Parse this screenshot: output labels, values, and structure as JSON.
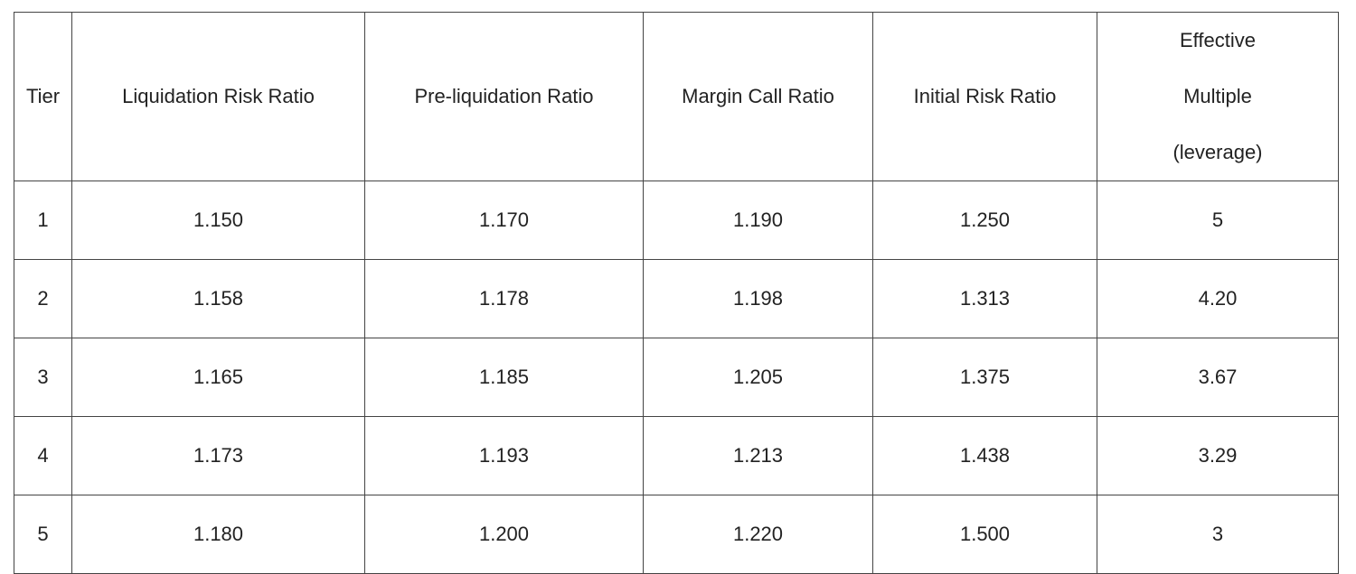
{
  "table": {
    "header": [
      "Tier",
      "Liquidation Risk Ratio",
      "Pre-liquidation Ratio",
      "Margin Call Ratio",
      "Initial Risk Ratio",
      "Effective Multiple (leverage)"
    ],
    "rows": [
      [
        "1",
        "1.150",
        "1.170",
        "1.190",
        "1.250",
        "5"
      ],
      [
        "2",
        "1.158",
        "1.178",
        "1.198",
        "1.313",
        "4.20"
      ],
      [
        "3",
        "1.165",
        "1.185",
        "1.205",
        "1.375",
        "3.67"
      ],
      [
        "4",
        "1.173",
        "1.193",
        "1.213",
        "1.438",
        "3.29"
      ],
      [
        "5",
        "1.180",
        "1.200",
        "1.220",
        "1.500",
        "3"
      ]
    ]
  }
}
